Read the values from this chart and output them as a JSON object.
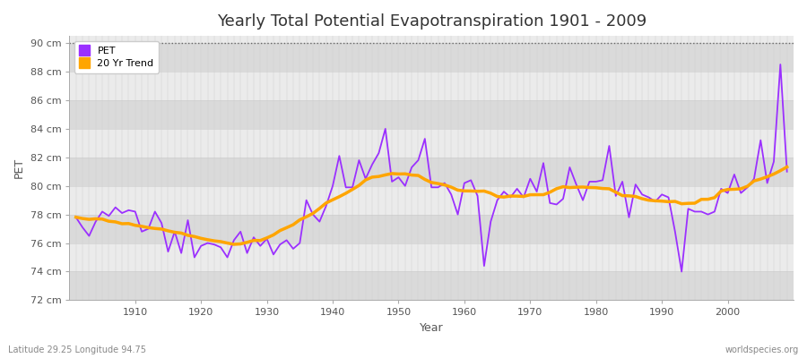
{
  "title": "Yearly Total Potential Evapotranspiration 1901 - 2009",
  "xlabel": "Year",
  "ylabel": "PET",
  "subtitle_left": "Latitude 29.25 Longitude 94.75",
  "subtitle_right": "worldspecies.org",
  "pet_color": "#9B30FF",
  "trend_color": "#FFA500",
  "bg_color": "#FFFFFF",
  "plot_bg_color_light": "#EBEBEB",
  "plot_bg_color_dark": "#DADADA",
  "ylim": [
    72,
    90.5
  ],
  "yticks": [
    72,
    74,
    76,
    78,
    80,
    82,
    84,
    86,
    88,
    90
  ],
  "years": [
    1901,
    1902,
    1903,
    1904,
    1905,
    1906,
    1907,
    1908,
    1909,
    1910,
    1911,
    1912,
    1913,
    1914,
    1915,
    1916,
    1917,
    1918,
    1919,
    1920,
    1921,
    1922,
    1923,
    1924,
    1925,
    1926,
    1927,
    1928,
    1929,
    1930,
    1931,
    1932,
    1933,
    1934,
    1935,
    1936,
    1937,
    1938,
    1939,
    1940,
    1941,
    1942,
    1943,
    1944,
    1945,
    1946,
    1947,
    1948,
    1949,
    1950,
    1951,
    1952,
    1953,
    1954,
    1955,
    1956,
    1957,
    1958,
    1959,
    1960,
    1961,
    1962,
    1963,
    1964,
    1965,
    1966,
    1967,
    1968,
    1969,
    1970,
    1971,
    1972,
    1973,
    1974,
    1975,
    1976,
    1977,
    1978,
    1979,
    1980,
    1981,
    1982,
    1983,
    1984,
    1985,
    1986,
    1987,
    1988,
    1989,
    1990,
    1991,
    1992,
    1993,
    1994,
    1995,
    1996,
    1997,
    1998,
    1999,
    2000,
    2001,
    2002,
    2003,
    2004,
    2005,
    2006,
    2007,
    2008,
    2009
  ],
  "pet_values": [
    77.8,
    77.1,
    76.5,
    77.5,
    78.2,
    77.9,
    78.5,
    78.1,
    78.3,
    78.2,
    76.8,
    77.0,
    78.2,
    77.4,
    75.4,
    76.8,
    75.3,
    77.6,
    75.0,
    75.8,
    76.0,
    75.9,
    75.7,
    75.0,
    76.2,
    76.8,
    75.3,
    76.4,
    75.8,
    76.3,
    75.2,
    75.9,
    76.2,
    75.6,
    76.0,
    79.0,
    78.0,
    77.5,
    78.6,
    80.0,
    82.1,
    79.9,
    79.9,
    81.8,
    80.5,
    81.5,
    82.3,
    84.0,
    80.3,
    80.6,
    80.0,
    81.3,
    81.8,
    83.3,
    79.9,
    79.9,
    80.2,
    79.4,
    78.0,
    80.2,
    80.4,
    79.3,
    74.4,
    77.5,
    79.0,
    79.6,
    79.2,
    79.8,
    79.2,
    80.5,
    79.6,
    81.6,
    78.8,
    78.7,
    79.1,
    81.3,
    80.1,
    79.0,
    80.3,
    80.3,
    80.4,
    82.8,
    79.3,
    80.3,
    77.8,
    80.1,
    79.4,
    79.2,
    78.9,
    79.4,
    79.2,
    76.8,
    74.0,
    78.4,
    78.2,
    78.2,
    78.0,
    78.2,
    79.8,
    79.5,
    80.8,
    79.5,
    79.9,
    80.5,
    83.2,
    80.2,
    81.7,
    88.5,
    81.0
  ]
}
